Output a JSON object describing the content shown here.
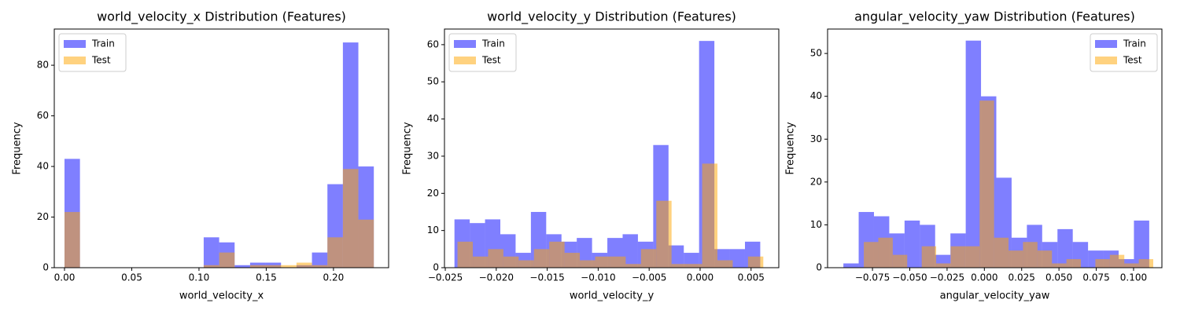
{
  "chart_data": [
    {
      "type": "histogram",
      "title": "world_velocity_x Distribution (Features)",
      "xlabel": "world_velocity_x",
      "ylabel": "Frequency",
      "xlim": [
        -0.0076,
        0.241
      ],
      "ylim": [
        0,
        94.3
      ],
      "xticks": [
        {
          "value": 0,
          "label": "0.00"
        },
        {
          "value": 0.05,
          "label": "0.05"
        },
        {
          "value": 0.1,
          "label": "0.10"
        },
        {
          "value": 0.15,
          "label": "0.15"
        },
        {
          "value": 0.2,
          "label": "0.20"
        }
      ],
      "yticks": [
        0,
        20,
        40,
        60,
        80
      ],
      "legend": "upper left",
      "series": [
        {
          "name": "Train",
          "color": "#0000ff",
          "bins": [
            0,
            0.0115,
            0.023,
            0.0345,
            0.046,
            0.0575,
            0.069,
            0.0805,
            0.092,
            0.1035,
            0.115,
            0.1265,
            0.138,
            0.1495,
            0.161,
            0.1725,
            0.184,
            0.1955,
            0.207,
            0.2185,
            0.23
          ],
          "values": [
            43,
            0,
            0,
            0,
            0,
            0,
            0,
            0,
            0,
            12,
            10,
            1,
            2,
            2,
            0,
            1,
            6,
            33,
            89,
            40
          ]
        },
        {
          "name": "Test",
          "color": "#ffa500",
          "bins": [
            0,
            0.0115,
            0.023,
            0.0345,
            0.046,
            0.0575,
            0.069,
            0.0805,
            0.092,
            0.1035,
            0.115,
            0.1265,
            0.138,
            0.1495,
            0.161,
            0.1725,
            0.184,
            0.1955,
            0.207,
            0.2185,
            0.23
          ],
          "values": [
            22,
            0,
            0,
            0,
            0,
            0,
            0,
            0,
            0,
            1,
            6,
            0,
            1,
            1,
            1,
            2,
            1,
            12,
            39,
            19
          ]
        }
      ]
    },
    {
      "type": "histogram",
      "title": "world_velocity_y Distribution (Features)",
      "xlabel": "world_velocity_y",
      "ylabel": "Frequency",
      "xlim": [
        -0.02508,
        0.00772
      ],
      "ylim": [
        0,
        64.2
      ],
      "xticks": [
        {
          "value": -0.025,
          "label": "−0.025"
        },
        {
          "value": -0.02,
          "label": "−0.020"
        },
        {
          "value": -0.015,
          "label": "−0.015"
        },
        {
          "value": -0.01,
          "label": "−0.010"
        },
        {
          "value": -0.005,
          "label": "−0.005"
        },
        {
          "value": 0,
          "label": "0.000"
        },
        {
          "value": 0.005,
          "label": "0.005"
        }
      ],
      "yticks": [
        0,
        10,
        20,
        30,
        40,
        50,
        60
      ],
      "legend": "upper left",
      "series": [
        {
          "name": "Train",
          "color": "#0000ff",
          "bins": [
            -0.0241,
            -0.0226,
            -0.0211,
            -0.0196,
            -0.0181,
            -0.0166,
            -0.0151,
            -0.0136,
            -0.0121,
            -0.0106,
            -0.0091,
            -0.0076,
            -0.0061,
            -0.0046,
            -0.0031,
            -0.0016,
            -0.0001,
            0.0014,
            0.0029,
            0.0044,
            0.0059
          ],
          "values": [
            13,
            12,
            13,
            9,
            4,
            15,
            9,
            7,
            8,
            4,
            8,
            9,
            7,
            33,
            6,
            4,
            61,
            5,
            5,
            7
          ]
        },
        {
          "name": "Test",
          "color": "#ffa500",
          "bins": [
            -0.0238,
            -0.0223,
            -0.0208,
            -0.0193,
            -0.0178,
            -0.0163,
            -0.0148,
            -0.0133,
            -0.0118,
            -0.0103,
            -0.0088,
            -0.0073,
            -0.0058,
            -0.0043,
            -0.0028,
            -0.0013,
            0.0002,
            0.0017,
            0.0032,
            0.0047,
            0.0062
          ],
          "values": [
            7,
            3,
            5,
            3,
            2,
            5,
            7,
            4,
            2,
            3,
            3,
            1,
            5,
            18,
            1,
            1,
            28,
            2,
            0,
            3
          ]
        }
      ]
    },
    {
      "type": "histogram",
      "title": "angular_velocity_yaw Distribution (Features)",
      "xlabel": "angular_velocity_yaw",
      "ylabel": "Frequency",
      "xlim": [
        -0.1051,
        0.119
      ],
      "ylim": [
        0,
        55.7
      ],
      "xticks": [
        {
          "value": -0.075,
          "label": "−0.075"
        },
        {
          "value": -0.05,
          "label": "−0.050"
        },
        {
          "value": -0.025,
          "label": "−0.025"
        },
        {
          "value": 0,
          "label": "0.000"
        },
        {
          "value": 0.025,
          "label": "0.025"
        },
        {
          "value": 0.05,
          "label": "0.050"
        },
        {
          "value": 0.075,
          "label": "0.075"
        },
        {
          "value": 0.1,
          "label": "0.100"
        }
      ],
      "yticks": [
        0,
        10,
        20,
        30,
        40,
        50
      ],
      "legend": "upper right",
      "series": [
        {
          "name": "Train",
          "color": "#0000ff",
          "bins": [
            -0.0945,
            -0.08425,
            -0.074,
            -0.06375,
            -0.0535,
            -0.04325,
            -0.033,
            -0.02275,
            -0.0125,
            -0.00225,
            0.008,
            0.01825,
            0.0285,
            0.03875,
            0.049,
            0.05925,
            0.0695,
            0.07975,
            0.09,
            0.10025,
            0.1105
          ],
          "values": [
            1,
            13,
            12,
            8,
            11,
            10,
            3,
            8,
            53,
            40,
            21,
            7,
            10,
            6,
            9,
            6,
            4,
            4,
            2,
            11
          ]
        },
        {
          "name": "Test",
          "color": "#ffa500",
          "bins": [
            -0.0808,
            -0.0711,
            -0.0614,
            -0.0517,
            -0.042,
            -0.0323,
            -0.0226,
            -0.0129,
            -0.0032,
            0.0065,
            0.0162,
            0.0259,
            0.0356,
            0.0453,
            0.055,
            0.0647,
            0.0744,
            0.0841,
            0.0938,
            0.1035,
            0.1132
          ],
          "values": [
            6,
            7,
            3,
            0,
            5,
            1,
            5,
            5,
            39,
            7,
            4,
            6,
            4,
            1,
            2,
            0,
            2,
            3,
            1,
            2
          ]
        }
      ]
    }
  ]
}
